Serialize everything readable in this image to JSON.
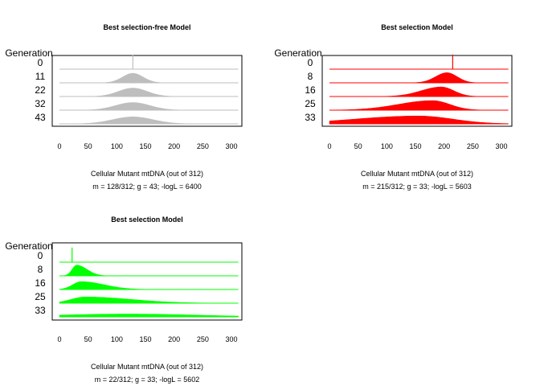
{
  "chart_data": [
    {
      "type": "area",
      "title": "Best selection-free Model",
      "ylabel": "Generation",
      "xlabel": "Cellular Mutant mtDNA (out of 312)",
      "caption": "m = 128/312; g = 43; -logL = 6400",
      "color": "#bebebe",
      "xlim": [
        0,
        312
      ],
      "xticks": [
        0,
        50,
        100,
        150,
        200,
        250,
        300
      ],
      "generations": [
        0,
        11,
        22,
        32,
        43
      ],
      "m": 128,
      "series": [
        {
          "generation": 0,
          "peak": 128,
          "spread_left": 0,
          "spread_right": 0,
          "height": 1.0
        },
        {
          "generation": 11,
          "peak": 128,
          "spread_left": 18,
          "spread_right": 18,
          "height": 0.85
        },
        {
          "generation": 22,
          "peak": 128,
          "spread_left": 25,
          "spread_right": 25,
          "height": 0.75
        },
        {
          "generation": 32,
          "peak": 128,
          "spread_left": 30,
          "spread_right": 30,
          "height": 0.68
        },
        {
          "generation": 43,
          "peak": 128,
          "spread_left": 35,
          "spread_right": 35,
          "height": 0.62
        }
      ]
    },
    {
      "type": "area",
      "title": "Best selection Model",
      "ylabel": "Generation",
      "xlabel": "Cellular Mutant mtDNA (out of 312)",
      "caption": "m = 215/312; g = 33; -logL = 5603",
      "color": "#ff0000",
      "xlim": [
        0,
        312
      ],
      "xticks": [
        0,
        50,
        100,
        150,
        200,
        250,
        300
      ],
      "generations": [
        0,
        8,
        16,
        25,
        33
      ],
      "m": 215,
      "series": [
        {
          "generation": 0,
          "peak": 215,
          "spread_left": 0,
          "spread_right": 0,
          "height": 1.0
        },
        {
          "generation": 8,
          "peak": 205,
          "spread_left": 20,
          "spread_right": 18,
          "height": 0.9
        },
        {
          "generation": 16,
          "peak": 195,
          "spread_left": 35,
          "spread_right": 22,
          "height": 0.85
        },
        {
          "generation": 25,
          "peak": 180,
          "spread_left": 60,
          "spread_right": 30,
          "height": 0.85
        },
        {
          "generation": 33,
          "peak": 155,
          "spread_left": 110,
          "spread_right": 60,
          "height": 0.7
        }
      ]
    },
    {
      "type": "area",
      "title": "Best selection Model",
      "ylabel": "Generation",
      "xlabel": "Cellular Mutant mtDNA (out of 312)",
      "caption": "m = 22/312; g = 33; -logL = 5602",
      "color": "#00ff00",
      "xlim": [
        0,
        312
      ],
      "xticks": [
        0,
        50,
        100,
        150,
        200,
        250,
        300
      ],
      "generations": [
        0,
        8,
        16,
        25,
        33
      ],
      "m": 22,
      "series": [
        {
          "generation": 0,
          "peak": 22,
          "spread_left": 0,
          "spread_right": 0,
          "height": 1.0
        },
        {
          "generation": 8,
          "peak": 30,
          "spread_left": 8,
          "spread_right": 18,
          "height": 0.95
        },
        {
          "generation": 16,
          "peak": 38,
          "spread_left": 15,
          "spread_right": 40,
          "height": 0.7
        },
        {
          "generation": 25,
          "peak": 45,
          "spread_left": 25,
          "spread_right": 80,
          "height": 0.55
        },
        {
          "generation": 33,
          "peak": 120,
          "spread_left": 120,
          "spread_right": 120,
          "height": 0.25
        }
      ]
    }
  ]
}
